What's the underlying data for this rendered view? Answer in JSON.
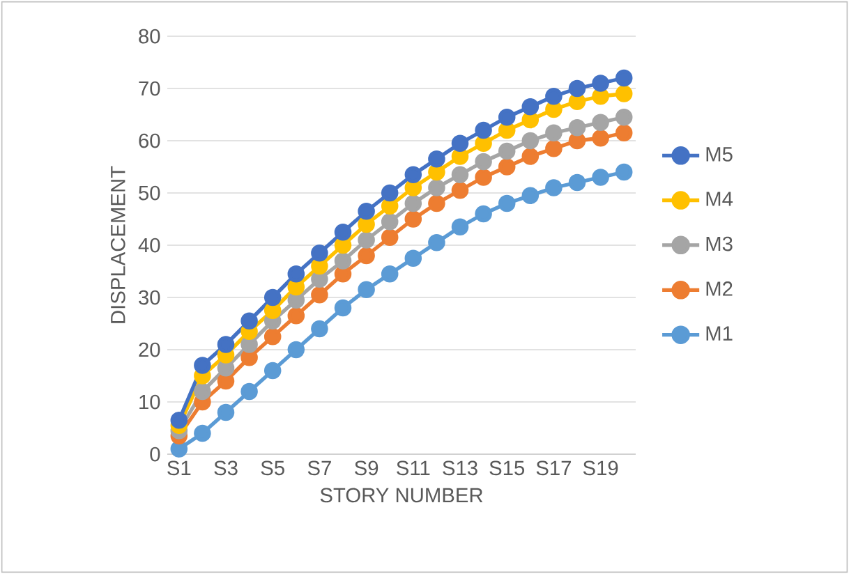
{
  "chart_data": {
    "type": "line",
    "xlabel": "STORY NUMBER",
    "ylabel": "DISPLACEMENT",
    "categories": [
      "S1",
      null,
      "S3",
      null,
      "S5",
      null,
      "S7",
      null,
      "S9",
      null,
      "S11",
      null,
      "S13",
      null,
      "S15",
      null,
      "S17",
      null,
      "S19",
      null
    ],
    "ylim": [
      0,
      80
    ],
    "yticks": [
      0,
      10,
      20,
      30,
      40,
      50,
      60,
      70,
      80
    ],
    "grid": "y",
    "legend": "right",
    "marker": "circle",
    "series": [
      {
        "name": "M5",
        "color": "#4472c4",
        "values": [
          6.5,
          17,
          21,
          25.5,
          30,
          34.5,
          38.5,
          42.5,
          46.5,
          50,
          53.5,
          56.5,
          59.5,
          62,
          64.5,
          66.5,
          68.5,
          70,
          71,
          72
        ]
      },
      {
        "name": "M4",
        "color": "#ffc000",
        "values": [
          5.5,
          15,
          19,
          23.5,
          27.5,
          32,
          36,
          40,
          44,
          47.5,
          51,
          54,
          57,
          59.5,
          62,
          64,
          66,
          67.5,
          68.5,
          69
        ]
      },
      {
        "name": "M3",
        "color": "#a5a5a5",
        "values": [
          4.5,
          12,
          16.5,
          21,
          25.5,
          29.5,
          33.5,
          37,
          41,
          44.5,
          48,
          51,
          53.5,
          56,
          58,
          60,
          61.5,
          62.5,
          63.5,
          64.5
        ]
      },
      {
        "name": "M2",
        "color": "#ed7d31",
        "values": [
          3.5,
          10,
          14,
          18.5,
          22.5,
          26.5,
          30.5,
          34.5,
          38,
          41.5,
          45,
          48,
          50.5,
          53,
          55,
          57,
          58.5,
          60,
          60.5,
          61.5
        ]
      },
      {
        "name": "M1",
        "color": "#5b9bd5",
        "values": [
          1,
          4,
          8,
          12,
          16,
          20,
          24,
          28,
          31.5,
          34.5,
          37.5,
          40.5,
          43.5,
          46,
          48,
          49.5,
          51,
          52,
          53,
          54
        ]
      }
    ]
  }
}
